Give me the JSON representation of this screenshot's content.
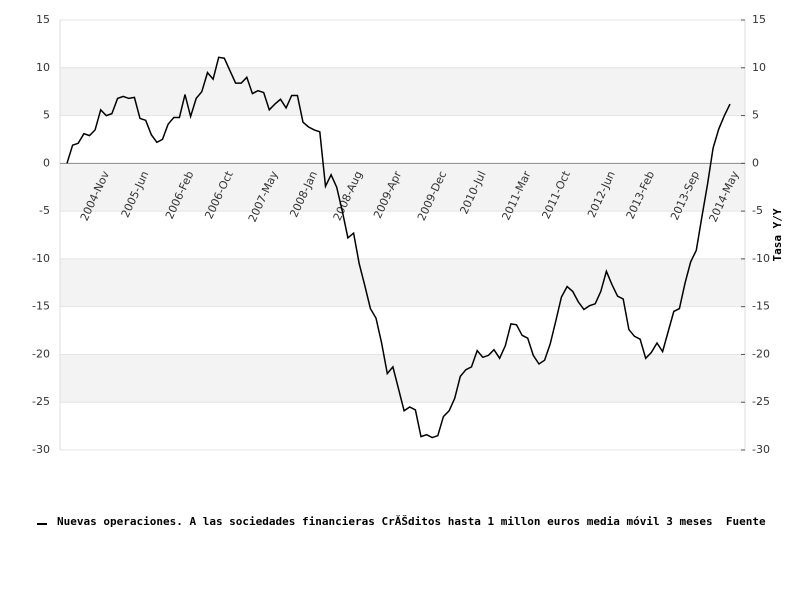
{
  "chart_data": {
    "type": "line",
    "y2label": "Tasa Y/Y",
    "categories": [
      null,
      null,
      null,
      null,
      null,
      null,
      "2004-Nov",
      null,
      null,
      null,
      null,
      null,
      null,
      "2005-Jun",
      null,
      null,
      null,
      null,
      null,
      null,
      null,
      "2006-Feb",
      null,
      null,
      null,
      null,
      null,
      null,
      "2006-Oct",
      null,
      null,
      null,
      null,
      null,
      null,
      null,
      "2007-May",
      null,
      null,
      null,
      null,
      null,
      null,
      "2008-Jan",
      null,
      null,
      null,
      null,
      null,
      null,
      null,
      "2008-Aug",
      null,
      null,
      null,
      null,
      null,
      null,
      "2009-Apr",
      null,
      null,
      null,
      null,
      null,
      null,
      null,
      "2009-Dec",
      null,
      null,
      null,
      null,
      null,
      null,
      "2010-Jul",
      null,
      null,
      null,
      null,
      null,
      null,
      null,
      "2011-Mar",
      null,
      null,
      null,
      null,
      null,
      null,
      "2011-Oct",
      null,
      null,
      null,
      null,
      null,
      null,
      null,
      "2012-Jun",
      null,
      null,
      null,
      null,
      null,
      null,
      "2013-Feb",
      null,
      null,
      null,
      null,
      null,
      null,
      null,
      "2013-Sep",
      null,
      null,
      null,
      null,
      null,
      null,
      "2014-May"
    ],
    "series": [
      {
        "name": "Nuevas operaciones. A las sociedades financieras CrĂŠditos hasta 1 millon euros media móvil 3 meses  Fuente",
        "color": "#000000",
        "values": [
          0,
          1.9,
          2.1,
          3.1,
          2.9,
          3.5,
          5.6,
          5.0,
          5.2,
          6.8,
          7.0,
          6.8,
          6.9,
          4.7,
          4.5,
          3.0,
          2.2,
          2.5,
          4.1,
          4.8,
          4.8,
          7.2,
          4.9,
          6.8,
          7.5,
          9.5,
          8.8,
          11.1,
          11.0,
          9.7,
          8.4,
          8.4,
          9.0,
          7.3,
          7.6,
          7.4,
          5.6,
          6.2,
          6.7,
          5.8,
          7.1,
          7.1,
          4.3,
          3.8,
          3.5,
          3.3,
          -2.4,
          -1.2,
          -2.5,
          -5.0,
          -7.8,
          -7.3,
          -10.5,
          -12.8,
          -15.2,
          -16.2,
          -18.8,
          -22.0,
          -21.3,
          -23.6,
          -25.9,
          -25.5,
          -25.8,
          -28.6,
          -28.4,
          -28.7,
          -28.5,
          -26.5,
          -25.9,
          -24.6,
          -22.3,
          -21.6,
          -21.3,
          -19.6,
          -20.3,
          -20.1,
          -19.5,
          -20.4,
          -19.1,
          -16.8,
          -16.9,
          -18.0,
          -18.3,
          -20.1,
          -21.0,
          -20.6,
          -18.9,
          -16.5,
          -14.0,
          -12.9,
          -13.4,
          -14.5,
          -15.3,
          -14.9,
          -14.7,
          -13.4,
          -11.3,
          -12.7,
          -13.9,
          -14.2,
          -17.4,
          -18.1,
          -18.4,
          -20.4,
          -19.8,
          -18.8,
          -19.7,
          -17.6,
          -15.5,
          -15.2,
          -12.5,
          -10.3,
          -9.1,
          -5.6,
          -2.2,
          1.6,
          3.6,
          5.0,
          6.2
        ]
      }
    ],
    "ylim": [
      -30,
      15
    ],
    "yticks": [
      15,
      10,
      5,
      0,
      -5,
      -10,
      -15,
      -20,
      -25,
      -30
    ],
    "y2lim": [
      -30,
      15
    ],
    "y2ticks": [
      15,
      10,
      5,
      0,
      -5,
      -10,
      -15,
      -20,
      -25,
      -30
    ],
    "grid": true,
    "legend": "bottom"
  }
}
